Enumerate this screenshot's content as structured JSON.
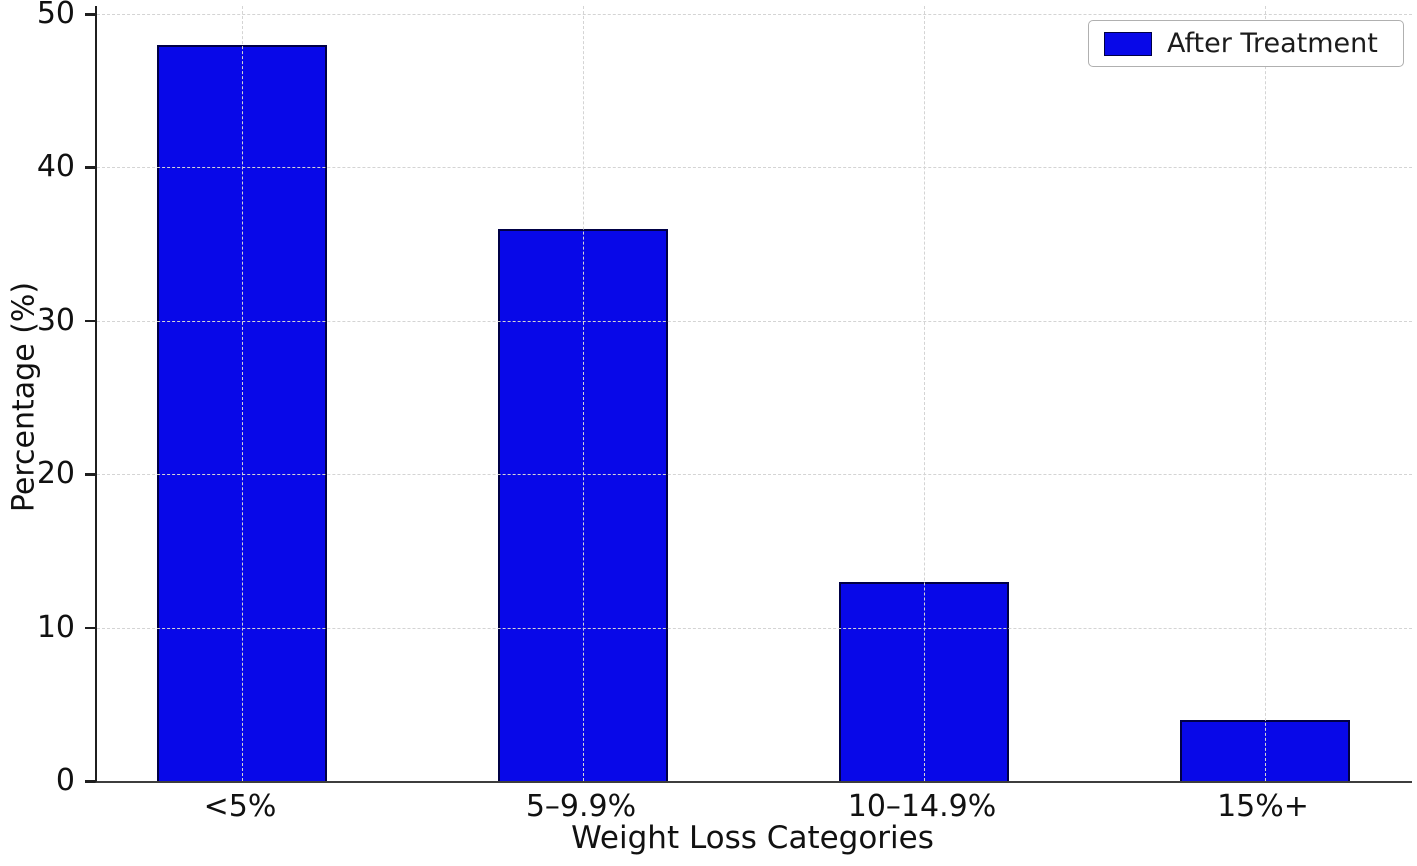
{
  "chart_data": {
    "type": "bar",
    "title": "",
    "categories": [
      "<5%",
      "5–9.9%",
      "10–14.9%",
      "15%+"
    ],
    "values": [
      48,
      36,
      13,
      4
    ],
    "series_name": "After Treatment",
    "xlabel": "Weight Loss Categories",
    "ylabel": "Percentage (%)",
    "ylim": [
      0,
      50
    ],
    "yticks": [
      0,
      10,
      20,
      30,
      40,
      50
    ],
    "grid": "dashed, both axes, drawn above bars",
    "legend": {
      "label": "After Treatment",
      "position": "upper right"
    },
    "colors": {
      "bar_fill": "#0808e8",
      "bar_edge": "#000045",
      "grid": "#d4d4d4",
      "axis": "#1f1f1f",
      "text": "#111111",
      "legend_border": "#b0b0b0"
    }
  }
}
